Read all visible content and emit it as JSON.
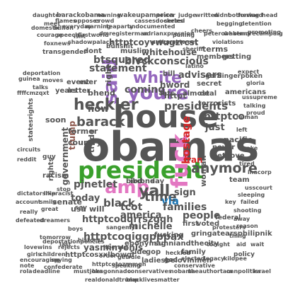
{
  "palette": [
    "#1f77b4",
    "#ff7f0e",
    "#2ca02c",
    "#d62728",
    "#9467bd",
    "#8c564b",
    "#e377c2",
    "#7f7f7f",
    "#bcbd22",
    "#17becf"
  ],
  "words": [
    {
      "text": "obamas",
      "color": "#555555"
    },
    {
      "text": "house",
      "color": "#555555"
    },
    {
      "text": "president",
      "color": "#3aa02c"
    },
    {
      "text": "youre",
      "color": "#9467bd"
    },
    {
      "text": "fuck",
      "color": "#e377c2"
    },
    {
      "text": "amp",
      "color": "#e377c2"
    },
    {
      "text": "said",
      "color": "#9467bd"
    },
    {
      "text": "white",
      "color": "#9467bd"
    },
    {
      "text": "barack",
      "color": "#555555"
    },
    {
      "text": "heckler",
      "color": "#555555"
    },
    {
      "text": "yall",
      "color": "#555555"
    },
    {
      "text": "black",
      "color": "#555555"
    },
    {
      "text": "time",
      "color": "#555555"
    },
    {
      "text": "coming",
      "color": "#555555"
    },
    {
      "text": "anymore",
      "color": "#555555"
    },
    {
      "text": "presidents",
      "color": "#555555"
    },
    {
      "text": "people",
      "color": "#555555"
    },
    {
      "text": "statement",
      "color": "#555555"
    },
    {
      "text": "hostage",
      "color": "#d62728"
    },
    {
      "text": "via",
      "color": "#1f77b4"
    },
    {
      "text": "families",
      "color": "#555555"
    },
    {
      "text": "michelle",
      "color": "#555555"
    },
    {
      "text": "america",
      "color": "#555555"
    },
    {
      "text": "whitehouse",
      "color": "#555555"
    },
    {
      "text": "blvckconscious",
      "color": "#555555"
    },
    {
      "text": "btsquared",
      "color": "#555555"
    },
    {
      "text": "httptcoqiggpppax",
      "color": "#555555"
    },
    {
      "text": "httptcodqrrszgqh",
      "color": "#555555"
    },
    {
      "text": "httptcoyvwugzrcst",
      "color": "#555555"
    },
    {
      "text": "pjnetlet",
      "color": "#555555"
    },
    {
      "text": "advisers",
      "color": "#555555"
    },
    {
      "text": "tcot",
      "color": "#555555"
    },
    {
      "text": "iran",
      "color": "#d62728"
    },
    {
      "text": "now",
      "color": "#555555"
    },
    {
      "text": "today",
      "color": "#555555"
    },
    {
      "text": "usa",
      "color": "#555555"
    },
    {
      "text": "will",
      "color": "#555555"
    },
    {
      "text": "trump",
      "color": "#8c564b"
    },
    {
      "text": "sign",
      "color": "#555555"
    },
    {
      "text": "httptco",
      "color": "#555555"
    },
    {
      "text": "just",
      "color": "#555555"
    },
    {
      "text": "former",
      "color": "#555555"
    },
    {
      "text": "country",
      "color": "#555555"
    },
    {
      "text": "government",
      "color": "#555555"
    },
    {
      "text": "senate",
      "color": "#555555"
    },
    {
      "text": "yasminyonis",
      "color": "#555555"
    },
    {
      "text": "httptcosxxlbowgr",
      "color": "#555555"
    },
    {
      "text": "ebonymag",
      "color": "#555555"
    },
    {
      "text": "sunniandthecity",
      "color": "#555555"
    },
    {
      "text": "ladiesbelovinmen",
      "color": "#555555"
    },
    {
      "text": "gringatearsphilipnik",
      "color": "#555555"
    },
    {
      "text": "terms",
      "color": "#555555"
    },
    {
      "text": "fucking",
      "color": "#555555"
    },
    {
      "text": "first",
      "color": "#555555"
    },
    {
      "text": "voted",
      "color": "#555555"
    },
    {
      "text": "bhend",
      "color": "#555555"
    },
    {
      "text": "lets",
      "color": "#555555"
    },
    {
      "text": "hword",
      "color": "#555555"
    },
    {
      "text": "muslim",
      "color": "#555555"
    },
    {
      "text": "dont",
      "color": "#555555"
    },
    {
      "text": "bill",
      "color": "#555555"
    },
    {
      "text": "httpt",
      "color": "#555555"
    },
    {
      "text": "bird",
      "color": "#555555"
    },
    {
      "text": "day",
      "color": "#555555"
    },
    {
      "text": "years",
      "color": "#555555"
    },
    {
      "text": "event",
      "color": "#555555"
    },
    {
      "text": "letter",
      "color": "#555555"
    },
    {
      "text": "right",
      "color": "#555555"
    },
    {
      "text": "gop",
      "color": "#555555"
    },
    {
      "text": "side",
      "color": "#555555"
    },
    {
      "text": "family",
      "color": "#555555"
    },
    {
      "text": "ever",
      "color": "#555555"
    },
    {
      "text": "secret",
      "color": "#555555"
    },
    {
      "text": "almost",
      "color": "#555555"
    },
    {
      "text": "deal",
      "color": "#555555"
    },
    {
      "text": "ibd",
      "color": "#555555"
    },
    {
      "text": "one",
      "color": "#555555"
    },
    {
      "text": "soon",
      "color": "#555555"
    },
    {
      "text": "trade",
      "color": "#555555"
    },
    {
      "text": "rights",
      "color": "#555555"
    },
    {
      "text": "members",
      "color": "#555555"
    },
    {
      "text": "getting",
      "color": "#555555"
    },
    {
      "text": "terrorists",
      "color": "#555555"
    },
    {
      "text": "americans",
      "color": "#555555"
    },
    {
      "text": "pacific",
      "color": "#555555"
    },
    {
      "text": "woman",
      "color": "#555555"
    },
    {
      "text": "love",
      "color": "#555555"
    },
    {
      "text": "never",
      "color": "#555555"
    },
    {
      "text": "team",
      "color": "#555555"
    },
    {
      "text": "get",
      "color": "#555555"
    },
    {
      "text": "policy",
      "color": "#555555"
    },
    {
      "text": "conservatives",
      "color": "#555555"
    },
    {
      "text": "mustjoka",
      "color": "#555555"
    },
    {
      "text": "hesgonnado",
      "color": "#555555"
    },
    {
      "text": "nobama",
      "color": "#555555"
    },
    {
      "text": "theauthortam",
      "color": "#555555"
    },
    {
      "text": "cnnpolitics",
      "color": "#555555"
    },
    {
      "text": "israel",
      "color": "#555555"
    },
    {
      "text": "tomorrow",
      "color": "#555555"
    },
    {
      "text": "last",
      "color": "#555555"
    },
    {
      "text": "racism",
      "color": "#555555"
    },
    {
      "text": "heckled",
      "color": "#555555"
    },
    {
      "text": "boys",
      "color": "#555555"
    },
    {
      "text": "say",
      "color": "#555555"
    },
    {
      "text": "god",
      "color": "#555555"
    },
    {
      "text": "httptcotozrnmgh",
      "color": "#555555"
    },
    {
      "text": "getrule",
      "color": "#555555"
    },
    {
      "text": "order",
      "color": "#555555"
    },
    {
      "text": "tonight",
      "color": "#555555"
    },
    {
      "text": "pulling",
      "color": "#555555"
    },
    {
      "text": "isnt",
      "color": "#555555"
    },
    {
      "text": "sangemyl",
      "color": "#555555"
    },
    {
      "text": "protesters",
      "color": "#555555"
    },
    {
      "text": "thing",
      "color": "#555555"
    },
    {
      "text": "realdonaldtrump",
      "color": "#555555"
    },
    {
      "text": "blacklivesmatter",
      "color": "#555555"
    },
    {
      "text": "reddit",
      "color": "#555555"
    },
    {
      "text": "confederate",
      "color": "#555555"
    },
    {
      "text": "guy",
      "color": "#555555"
    },
    {
      "text": "really",
      "color": "#555555"
    },
    {
      "text": "great",
      "color": "#555555"
    },
    {
      "text": "stop",
      "color": "#555555"
    },
    {
      "text": "ffffcmzqxt",
      "color": "#555555"
    },
    {
      "text": "barackobama",
      "color": "#555555"
    },
    {
      "text": "daughter",
      "color": "#555555"
    },
    {
      "text": "wakeupamerica",
      "color": "#555555"
    },
    {
      "text": "owning",
      "color": "#555555"
    },
    {
      "text": "flames",
      "color": "#555555"
    },
    {
      "text": "opposes",
      "color": "#555555"
    },
    {
      "text": "meet",
      "color": "#555555"
    },
    {
      "text": "crowd",
      "color": "#555555"
    },
    {
      "text": "transgender",
      "color": "#555555"
    },
    {
      "text": "courage",
      "color": "#555555"
    },
    {
      "text": "speech",
      "color": "#555555"
    },
    {
      "text": "firstworld",
      "color": "#555555"
    },
    {
      "text": "domestic",
      "color": "#555555"
    },
    {
      "text": "billion",
      "color": "#555555"
    },
    {
      "text": "everyday",
      "color": "#555555"
    },
    {
      "text": "warning",
      "color": "#555555"
    },
    {
      "text": "teaparty",
      "color": "#555555"
    },
    {
      "text": "undocumented",
      "color": "#555555"
    },
    {
      "text": "dmregisterman",
      "color": "#555555"
    },
    {
      "text": "adrianxpression",
      "color": "#555555"
    },
    {
      "text": "cassesdocketed",
      "color": "#555555"
    },
    {
      "text": "peterobakerny",
      "color": "#555555"
    },
    {
      "text": "whotmorecampaign",
      "color": "#555555"
    },
    {
      "text": "gerflingerpoken",
      "color": "#555555"
    },
    {
      "text": "violations",
      "color": "#555555"
    },
    {
      "text": "cheers",
      "color": "#555555"
    },
    {
      "text": "written",
      "color": "#555555"
    },
    {
      "text": "didnt",
      "color": "#555555"
    },
    {
      "text": "bothering",
      "color": "#555555"
    },
    {
      "text": "forward",
      "color": "#555555"
    },
    {
      "text": "head",
      "color": "#555555"
    },
    {
      "text": "begging",
      "color": "#555555"
    },
    {
      "text": "detention",
      "color": "#555555"
    },
    {
      "text": "promoting",
      "color": "#555555"
    },
    {
      "text": "deportation",
      "color": "#555555"
    },
    {
      "text": "guinea",
      "color": "#555555"
    },
    {
      "text": "moves",
      "color": "#555555"
    },
    {
      "text": "talks",
      "color": "#555555"
    },
    {
      "text": "circuits",
      "color": "#555555"
    },
    {
      "text": "statesrights",
      "color": "#555555"
    },
    {
      "text": "dictatorship",
      "color": "#555555"
    },
    {
      "text": "likeracist",
      "color": "#555555"
    },
    {
      "text": "account",
      "color": "#555555"
    },
    {
      "text": "smile",
      "color": "#555555"
    },
    {
      "text": "defeated",
      "color": "#555555"
    },
    {
      "text": "dreamers",
      "color": "#555555"
    },
    {
      "text": "girls",
      "color": "#555555"
    },
    {
      "text": "children",
      "color": "#555555"
    },
    {
      "text": "encouraging",
      "color": "#555555"
    },
    {
      "text": "note",
      "color": "#555555"
    },
    {
      "text": "rola",
      "color": "#555555"
    },
    {
      "text": "deadline",
      "color": "#555555"
    },
    {
      "text": "liberals",
      "color": "#555555"
    },
    {
      "text": "history",
      "color": "#555555"
    },
    {
      "text": "rejects",
      "color": "#555555"
    },
    {
      "text": "spying",
      "color": "#555555"
    },
    {
      "text": "lovewins",
      "color": "#555555"
    },
    {
      "text": "deportationpolicies",
      "color": "#555555"
    },
    {
      "text": "conservative",
      "color": "#555555"
    },
    {
      "text": "speaking",
      "color": "#555555"
    },
    {
      "text": "elected",
      "color": "#555555"
    },
    {
      "text": "legacy",
      "color": "#555555"
    },
    {
      "text": "kilopee",
      "color": "#555555"
    },
    {
      "text": "federal",
      "color": "#555555"
    },
    {
      "text": "human",
      "color": "#555555"
    },
    {
      "text": "left",
      "color": "#555555"
    },
    {
      "text": "tired",
      "color": "#555555"
    },
    {
      "text": "talking",
      "color": "#555555"
    },
    {
      "text": "proud",
      "color": "#555555"
    },
    {
      "text": "make",
      "color": "#555555"
    },
    {
      "text": "expect",
      "color": "#555555"
    },
    {
      "text": "ussupreme",
      "color": "#555555"
    },
    {
      "text": "gloria",
      "color": "#555555"
    },
    {
      "text": "inacorp",
      "color": "#555555"
    },
    {
      "text": "usscourt",
      "color": "#555555"
    },
    {
      "text": "sleeping",
      "color": "#555555"
    },
    {
      "text": "failed",
      "color": "#555555"
    },
    {
      "text": "shooting",
      "color": "#555555"
    },
    {
      "text": "reason",
      "color": "#555555"
    },
    {
      "text": "aid",
      "color": "#555555"
    },
    {
      "text": "wait",
      "color": "#555555"
    },
    {
      "text": "key",
      "color": "#555555"
    },
    {
      "text": "away",
      "color": "#555555"
    },
    {
      "text": "series",
      "color": "#555555"
    },
    {
      "text": "bullshit",
      "color": "#555555"
    },
    {
      "text": "power",
      "color": "#555555"
    },
    {
      "text": "judge",
      "color": "#555555"
    },
    {
      "text": "national",
      "color": "#555555"
    },
    {
      "text": "shadowpalace",
      "color": "#555555"
    },
    {
      "text": "foxnews",
      "color": "#555555"
    },
    {
      "text": "retweet",
      "color": "#555555"
    },
    {
      "text": "sheriff",
      "color": "#555555"
    },
    {
      "text": "latino",
      "color": "#555555"
    }
  ]
}
